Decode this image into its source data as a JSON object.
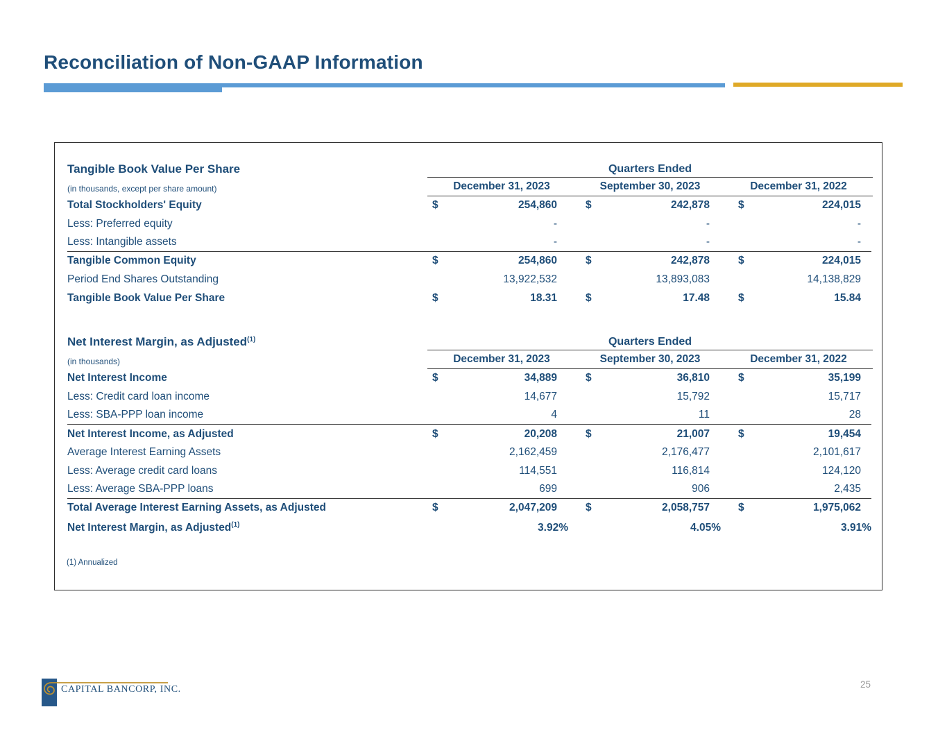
{
  "page": {
    "title": "Reconciliation of Non-GAAP Information",
    "footnote": "(1) Annualized",
    "page_number": "25"
  },
  "footer": {
    "company": "CAPITAL BANCORP, INC.",
    "logo_icon": "gold-spiral-on-navy-rectangle"
  },
  "colors": {
    "navy": "#1F4E79",
    "accent_blue": "#5B9BD5",
    "gold": "#DFA927",
    "logo_gold": "#C0922E",
    "rule": "#3a3a3a",
    "border": "#2b2b2b",
    "page_gray": "#9a9a9a"
  },
  "currency_symbol": "$",
  "tables": [
    {
      "title": "Tangible Book Value Per Share",
      "title_sup": "",
      "subtitle": "(in thousands, except per share amount)",
      "group_header": "Quarters Ended",
      "columns": [
        "December 31, 2023",
        "September 30, 2023",
        "December 31, 2022"
      ],
      "rows": [
        {
          "label": "Total Stockholders' Equity",
          "bold": true,
          "dollar": true,
          "values": [
            "254,860",
            "242,878",
            "224,015"
          ]
        },
        {
          "label": "Less: Preferred equity",
          "bold": false,
          "dollar": false,
          "values": [
            "-",
            "-",
            "-"
          ]
        },
        {
          "label": "Less: Intangible assets",
          "bold": false,
          "dollar": false,
          "values": [
            "-",
            "-",
            "-"
          ],
          "underline": true
        },
        {
          "label": "Tangible Common Equity",
          "bold": true,
          "dollar": true,
          "values": [
            "254,860",
            "242,878",
            "224,015"
          ]
        },
        {
          "label": "Period End Shares Outstanding",
          "bold": false,
          "dollar": false,
          "values": [
            "13,922,532",
            "13,893,083",
            "14,138,829"
          ]
        },
        {
          "label": "Tangible Book Value Per Share",
          "bold": true,
          "dollar": true,
          "values": [
            "18.31",
            "17.48",
            "15.84"
          ]
        }
      ]
    },
    {
      "title": "Net Interest Margin, as Adjusted",
      "title_sup": "(1)",
      "subtitle": "(in thousands)",
      "group_header": "Quarters Ended",
      "columns": [
        "December 31, 2023",
        "September 30, 2023",
        "December 31, 2022"
      ],
      "rows": [
        {
          "label": "Net Interest Income",
          "bold": true,
          "dollar": true,
          "values": [
            "34,889",
            "36,810",
            "35,199"
          ]
        },
        {
          "label": "Less: Credit card loan income",
          "bold": false,
          "dollar": false,
          "values": [
            "14,677",
            "15,792",
            "15,717"
          ]
        },
        {
          "label": "Less: SBA-PPP loan income",
          "bold": false,
          "dollar": false,
          "values": [
            "4",
            "11",
            "28"
          ],
          "underline": true
        },
        {
          "label": "Net Interest Income, as Adjusted",
          "bold": true,
          "dollar": true,
          "values": [
            "20,208",
            "21,007",
            "19,454"
          ]
        },
        {
          "label": "Average Interest Earning Assets",
          "bold": false,
          "dollar": false,
          "values": [
            "2,162,459",
            "2,176,477",
            "2,101,617"
          ]
        },
        {
          "label": "Less: Average credit card loans",
          "bold": false,
          "dollar": false,
          "values": [
            "114,551",
            "116,814",
            "124,120"
          ]
        },
        {
          "label": "Less: Average SBA-PPP loans",
          "bold": false,
          "dollar": false,
          "values": [
            "699",
            "906",
            "2,435"
          ],
          "underline": true
        },
        {
          "label": "Total Average Interest Earning Assets, as Adjusted",
          "bold": true,
          "dollar": true,
          "values": [
            "2,047,209",
            "2,058,757",
            "1,975,062"
          ]
        },
        {
          "label": "Net Interest Margin, as Adjusted",
          "label_sup": "(1)",
          "bold": true,
          "dollar": false,
          "pct": true,
          "tall": true,
          "values": [
            "3.92%",
            "4.05%",
            "3.91%"
          ]
        }
      ]
    }
  ]
}
